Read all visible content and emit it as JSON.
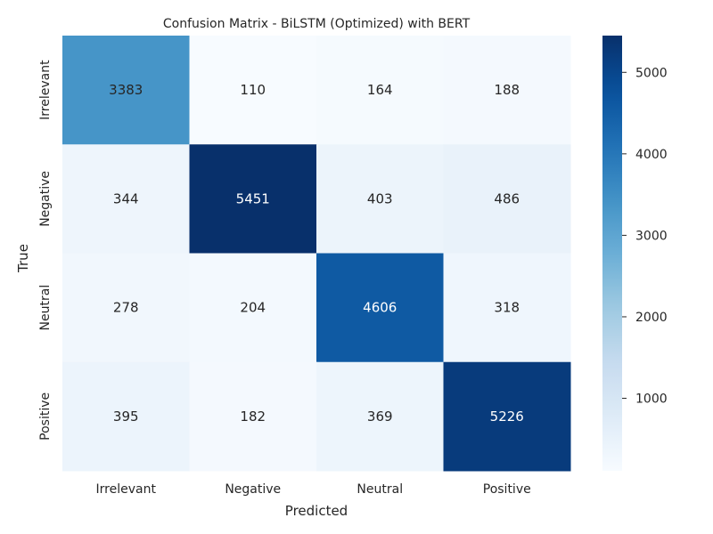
{
  "chart_data": {
    "type": "heatmap",
    "title": "Confusion Matrix - BiLSTM (Optimized) with BERT",
    "xlabel": "Predicted",
    "ylabel": "True",
    "x_categories": [
      "Irrelevant",
      "Negative",
      "Neutral",
      "Positive"
    ],
    "y_categories": [
      "Irrelevant",
      "Negative",
      "Neutral",
      "Positive"
    ],
    "values": [
      [
        3383,
        110,
        164,
        188
      ],
      [
        344,
        5451,
        403,
        486
      ],
      [
        278,
        204,
        4606,
        318
      ],
      [
        395,
        182,
        369,
        5226
      ]
    ],
    "colormap": "Blues",
    "color_range": [
      110,
      5451
    ],
    "colorbar_ticks": [
      1000,
      2000,
      3000,
      4000,
      5000
    ],
    "colors": {
      "low": "#f7fbff",
      "high": "#08306b"
    }
  }
}
